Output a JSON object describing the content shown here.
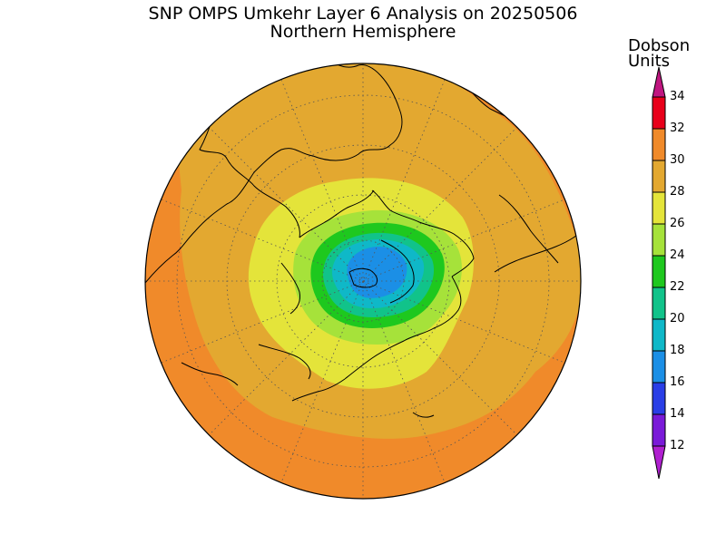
{
  "header": {
    "title": "SNP OMPS Umkehr Layer 6 Analysis on 20250506",
    "subtitle": "Northern Hemisphere"
  },
  "colorbar": {
    "title_line1": "Dobson",
    "title_line2": "Units",
    "ticks": [
      "34",
      "32",
      "30",
      "28",
      "26",
      "24",
      "22",
      "20",
      "18",
      "16",
      "14",
      "12"
    ],
    "colors": [
      {
        "range": "32-34",
        "color": "#e8001a"
      },
      {
        "range": "30-32",
        "color": "#f08a2a"
      },
      {
        "range": "28-30",
        "color": "#e3a830"
      },
      {
        "range": "26-28",
        "color": "#e4e43a"
      },
      {
        "range": "24-26",
        "color": "#a6e23a"
      },
      {
        "range": "22-24",
        "color": "#1ec81e"
      },
      {
        "range": "20-22",
        "color": "#11c38a"
      },
      {
        "range": "18-20",
        "color": "#0fb8c8"
      },
      {
        "range": "16-18",
        "color": "#1b8fe6"
      },
      {
        "range": "14-16",
        "color": "#2a3ee6"
      },
      {
        "range": "12-14",
        "color": "#7a1ad8"
      },
      {
        "range": "below 12",
        "color": "#b020d0"
      },
      {
        "range": "above 34",
        "color": "#c01680"
      }
    ]
  },
  "map": {
    "projection": "north polar stereographic",
    "field": "ozone column, Dobson Units",
    "lowest_values_region": "centered near the North Pole (about 17-18 DU)",
    "highest_values_region": "outer mid-latitude ring (about 30-32 DU)",
    "graticule": "dotted"
  }
}
